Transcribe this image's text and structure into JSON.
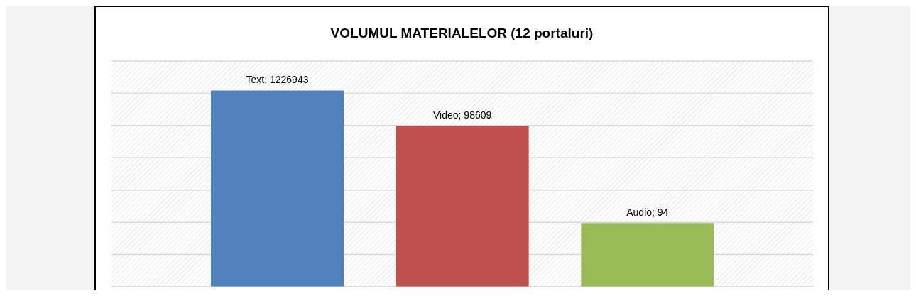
{
  "chart_data": {
    "type": "bar",
    "title": "VOLUMUL MATERIALELOR (12 portaluri)",
    "categories": [
      null,
      null,
      null
    ],
    "values": [
      1226943,
      98609,
      94
    ],
    "colors": [
      "#4f81bd",
      "#c0504d",
      "#9bbb59"
    ],
    "value_labels": [
      "Text; 1226943",
      "Video; 98609",
      "Audio; 94"
    ],
    "log": "y",
    "ylim": [
      1,
      10000000
    ],
    "grid": "y"
  }
}
